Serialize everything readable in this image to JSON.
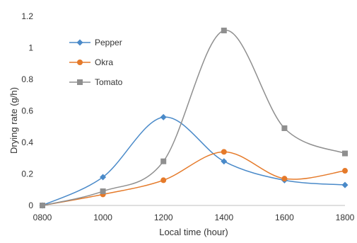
{
  "chart_data": {
    "type": "line",
    "title": "",
    "xlabel": "Local time (hour)",
    "ylabel": "Drying rate (g/h)",
    "categories": [
      "0800",
      "1000",
      "1200",
      "1400",
      "1600",
      "1800"
    ],
    "ylim": [
      0,
      1.2
    ],
    "yticks": [
      "0",
      "0.2",
      "0.4",
      "0.6",
      "0.8",
      "1",
      "1.2"
    ],
    "grid": false,
    "legend_position": "top-left",
    "series": [
      {
        "name": "Pepper",
        "color": "#4a8ac9",
        "marker": "diamond",
        "values": [
          0,
          0.18,
          0.56,
          0.28,
          0.16,
          0.13
        ]
      },
      {
        "name": "Okra",
        "color": "#e57a2a",
        "marker": "circle",
        "values": [
          0,
          0.07,
          0.16,
          0.34,
          0.17,
          0.22
        ]
      },
      {
        "name": "Tomato",
        "color": "#8f8f8f",
        "marker": "square",
        "values": [
          0,
          0.09,
          0.28,
          1.11,
          0.49,
          0.33
        ]
      }
    ]
  }
}
